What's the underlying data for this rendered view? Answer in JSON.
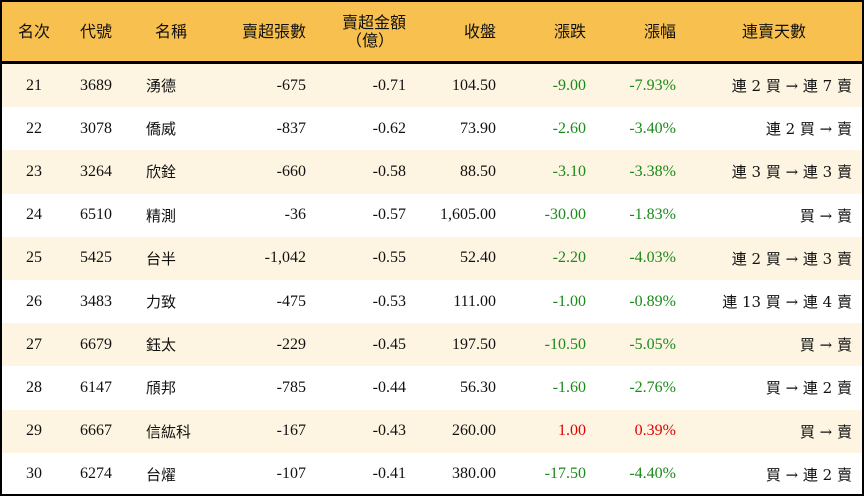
{
  "colors": {
    "header": "#F8C04E",
    "alt_row": "#FDF5E2",
    "down": "#1a8a1a",
    "up": "#e00000"
  },
  "headers": [
    "名次",
    "代號",
    "名稱",
    "賣超張數",
    "賣超金額",
    "（億）",
    "收盤",
    "漲跌",
    "漲幅",
    "連賣天數"
  ],
  "rows": [
    {
      "rank": "21",
      "code": "3689",
      "name": "湧德",
      "shares": "-675",
      "amount": "-0.71",
      "close": "104.50",
      "change": "-9.00",
      "pct": "-7.93%",
      "days": "連 2 買 → 連 7 賣",
      "dir": "down"
    },
    {
      "rank": "22",
      "code": "3078",
      "name": "僑威",
      "shares": "-837",
      "amount": "-0.62",
      "close": "73.90",
      "change": "-2.60",
      "pct": "-3.40%",
      "days": "連 2 買 → 賣",
      "dir": "down"
    },
    {
      "rank": "23",
      "code": "3264",
      "name": "欣銓",
      "shares": "-660",
      "amount": "-0.58",
      "close": "88.50",
      "change": "-3.10",
      "pct": "-3.38%",
      "days": "連 3 買 → 連 3 賣",
      "dir": "down"
    },
    {
      "rank": "24",
      "code": "6510",
      "name": "精測",
      "shares": "-36",
      "amount": "-0.57",
      "close": "1,605.00",
      "change": "-30.00",
      "pct": "-1.83%",
      "days": "買 → 賣",
      "dir": "down"
    },
    {
      "rank": "25",
      "code": "5425",
      "name": "台半",
      "shares": "-1,042",
      "amount": "-0.55",
      "close": "52.40",
      "change": "-2.20",
      "pct": "-4.03%",
      "days": "連 2 買 → 連 3 賣",
      "dir": "down"
    },
    {
      "rank": "26",
      "code": "3483",
      "name": "力致",
      "shares": "-475",
      "amount": "-0.53",
      "close": "111.00",
      "change": "-1.00",
      "pct": "-0.89%",
      "days": "連 13 買 → 連 4 賣",
      "dir": "down"
    },
    {
      "rank": "27",
      "code": "6679",
      "name": "鈺太",
      "shares": "-229",
      "amount": "-0.45",
      "close": "197.50",
      "change": "-10.50",
      "pct": "-5.05%",
      "days": "買 → 賣",
      "dir": "down"
    },
    {
      "rank": "28",
      "code": "6147",
      "name": "頎邦",
      "shares": "-785",
      "amount": "-0.44",
      "close": "56.30",
      "change": "-1.60",
      "pct": "-2.76%",
      "days": "買 → 連 2 賣",
      "dir": "down"
    },
    {
      "rank": "29",
      "code": "6667",
      "name": "信紘科",
      "shares": "-167",
      "amount": "-0.43",
      "close": "260.00",
      "change": "1.00",
      "pct": "0.39%",
      "days": "買 → 賣",
      "dir": "up"
    },
    {
      "rank": "30",
      "code": "6274",
      "name": "台燿",
      "shares": "-107",
      "amount": "-0.41",
      "close": "380.00",
      "change": "-17.50",
      "pct": "-4.40%",
      "days": "買 → 連 2 賣",
      "dir": "down"
    }
  ]
}
